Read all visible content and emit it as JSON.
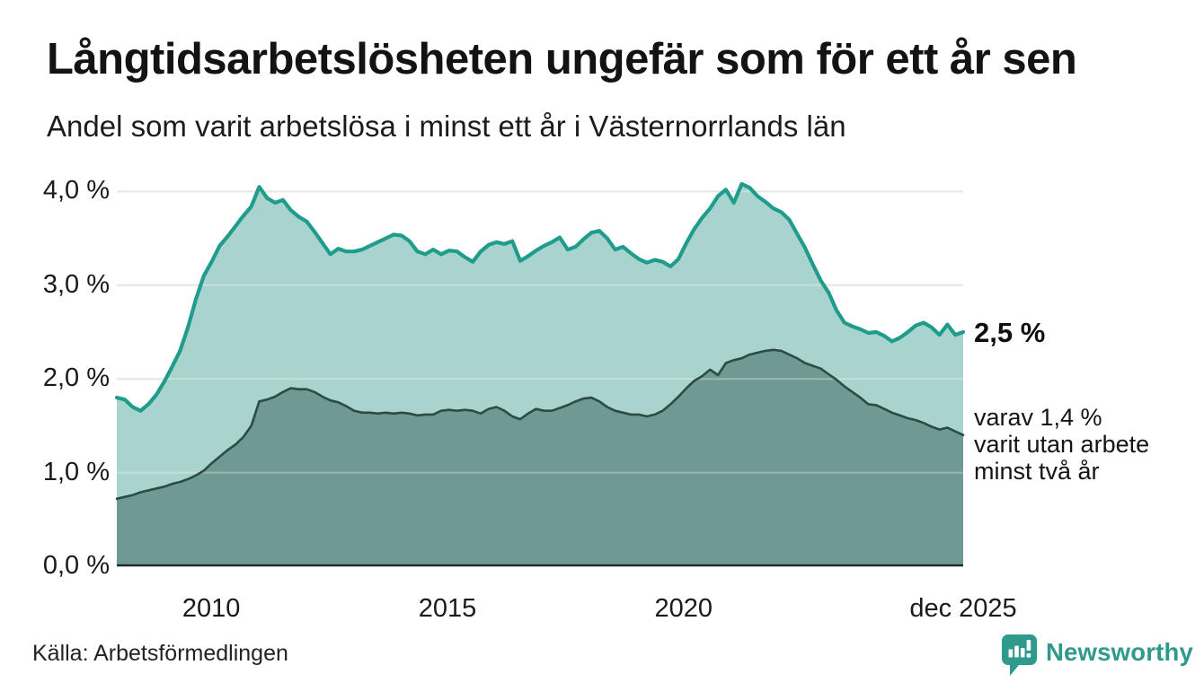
{
  "header": {
    "title": "Långtidsarbetslösheten ungefär som för ett år sen",
    "subtitle": "Andel som varit arbetslösa i minst ett år i Västernorrlands län"
  },
  "annotations": {
    "latest_total": "2,5 %",
    "sub_lines": [
      "varav 1,4 %",
      "varit utan arbete",
      "minst två år"
    ]
  },
  "footer": {
    "source": "Källa: Arbetsförmedlingen",
    "logo_text": "Newsworthy"
  },
  "colors": {
    "line_one_year": "#1f9c8b",
    "fill_one_year": "#a9d4cd",
    "line_two_year": "#2b4c46",
    "fill_two_year": "#6f9a94",
    "gridline": "#dcdcdc",
    "axis_line": "#1b2b28",
    "logo_teal": "#2f998b",
    "text": "#131313"
  },
  "chart_data": {
    "type": "area",
    "title": "Långtidsarbetslösheten ungefär som för ett år sen",
    "subtitle": "Andel som varit arbetslösa i minst ett år i Västernorrlands län",
    "xlabel": "",
    "ylabel": "",
    "grid": true,
    "legend": "none",
    "x_range": [
      2008.0,
      2025.92
    ],
    "x_interval": "2 months",
    "ylim": [
      0,
      4.18
    ],
    "y_ticks": [
      {
        "value": 0,
        "label": "0,0 %"
      },
      {
        "value": 1,
        "label": "1,0 %"
      },
      {
        "value": 2,
        "label": "2,0 %"
      },
      {
        "value": 3,
        "label": "3,0 %"
      },
      {
        "value": 4,
        "label": "4,0 %"
      }
    ],
    "x_ticks": [
      {
        "value": 2010.0,
        "label": "2010"
      },
      {
        "value": 2015.0,
        "label": "2015"
      },
      {
        "value": 2020.0,
        "label": "2020"
      },
      {
        "value": 2025.92,
        "label": "dec 2025"
      }
    ],
    "series": [
      {
        "name": "Arbetslösa minst ett år",
        "latest_value_pct": 2.5,
        "stroke": "#1f9c8b",
        "fill": "#a9d4cd",
        "values": [
          1.8,
          1.78,
          1.7,
          1.66,
          1.73,
          1.83,
          1.97,
          2.13,
          2.3,
          2.55,
          2.85,
          3.1,
          3.25,
          3.42,
          3.52,
          3.63,
          3.74,
          3.84,
          4.05,
          3.93,
          3.88,
          3.91,
          3.8,
          3.73,
          3.68,
          3.57,
          3.45,
          3.33,
          3.39,
          3.36,
          3.36,
          3.38,
          3.42,
          3.46,
          3.5,
          3.54,
          3.53,
          3.47,
          3.36,
          3.33,
          3.38,
          3.33,
          3.37,
          3.36,
          3.3,
          3.25,
          3.36,
          3.43,
          3.46,
          3.44,
          3.47,
          3.26,
          3.31,
          3.37,
          3.42,
          3.46,
          3.51,
          3.38,
          3.41,
          3.49,
          3.56,
          3.58,
          3.5,
          3.38,
          3.41,
          3.34,
          3.28,
          3.24,
          3.27,
          3.25,
          3.2,
          3.28,
          3.45,
          3.6,
          3.72,
          3.82,
          3.95,
          4.02,
          3.88,
          4.08,
          4.04,
          3.95,
          3.89,
          3.82,
          3.78,
          3.7,
          3.55,
          3.4,
          3.22,
          3.05,
          2.92,
          2.73,
          2.6,
          2.56,
          2.53,
          2.49,
          2.5,
          2.46,
          2.4,
          2.44,
          2.5,
          2.57,
          2.6,
          2.55,
          2.47,
          2.58,
          2.47,
          2.5
        ]
      },
      {
        "name": "Arbetslösa minst två år",
        "latest_value_pct": 1.4,
        "stroke": "#2b4c46",
        "fill": "#6f9a94",
        "values": [
          0.72,
          0.74,
          0.76,
          0.79,
          0.81,
          0.83,
          0.85,
          0.88,
          0.9,
          0.93,
          0.97,
          1.02,
          1.1,
          1.17,
          1.24,
          1.3,
          1.38,
          1.5,
          1.76,
          1.78,
          1.81,
          1.86,
          1.9,
          1.89,
          1.89,
          1.86,
          1.81,
          1.77,
          1.75,
          1.71,
          1.66,
          1.64,
          1.64,
          1.63,
          1.64,
          1.63,
          1.64,
          1.63,
          1.61,
          1.62,
          1.62,
          1.66,
          1.67,
          1.66,
          1.67,
          1.66,
          1.63,
          1.68,
          1.7,
          1.66,
          1.6,
          1.57,
          1.63,
          1.68,
          1.66,
          1.66,
          1.69,
          1.72,
          1.76,
          1.79,
          1.8,
          1.76,
          1.7,
          1.66,
          1.64,
          1.62,
          1.62,
          1.6,
          1.62,
          1.66,
          1.73,
          1.81,
          1.9,
          1.98,
          2.03,
          2.1,
          2.04,
          2.17,
          2.2,
          2.22,
          2.26,
          2.28,
          2.3,
          2.31,
          2.3,
          2.26,
          2.22,
          2.17,
          2.14,
          2.11,
          2.05,
          1.99,
          1.92,
          1.86,
          1.8,
          1.73,
          1.72,
          1.68,
          1.64,
          1.61,
          1.58,
          1.56,
          1.53,
          1.49,
          1.46,
          1.48,
          1.44,
          1.4
        ]
      }
    ]
  }
}
